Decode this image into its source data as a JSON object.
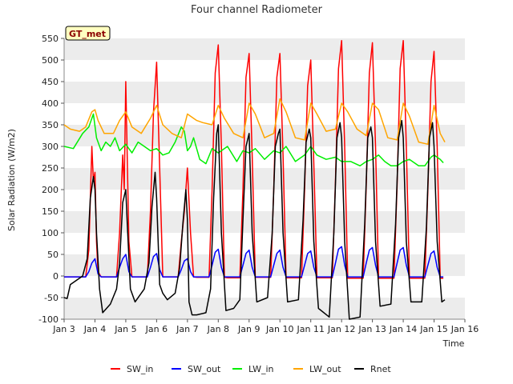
{
  "chart_data": {
    "type": "line",
    "title": "Four channel Radiometer",
    "xlabel": "Time",
    "ylabel": "Solar Radiation (W/m2)",
    "badge": "GT_met",
    "xlim": [
      3,
      16
    ],
    "ylim": [
      -100,
      550
    ],
    "x_tick_values": [
      3,
      4,
      5,
      6,
      7,
      8,
      9,
      10,
      11,
      12,
      13,
      14,
      15,
      16
    ],
    "x_tick_labels": [
      "Jan 3",
      "Jan 4",
      "Jan 5",
      "Jan 6",
      "Jan 7",
      "Jan 8",
      "Jan 9",
      "Jan 10",
      "Jan 11",
      "Jan 12",
      "Jan 13",
      "Jan 14",
      "Jan 15",
      "Jan 16"
    ],
    "y_tick_values": [
      -100,
      -50,
      0,
      50,
      100,
      150,
      200,
      250,
      300,
      350,
      400,
      450,
      500,
      550
    ],
    "y_tick_labels": [
      "-100",
      "-50",
      "0",
      "50",
      "100",
      "150",
      "200",
      "250",
      "300",
      "350",
      "400",
      "450",
      "500",
      "550"
    ],
    "grid": "horizontal bands",
    "legend_position": "bottom",
    "series": [
      {
        "name": "SW_in",
        "color": "#ff0000",
        "x": [
          3.0,
          3.7,
          3.8,
          3.9,
          3.95,
          4.0,
          4.05,
          4.1,
          4.2,
          4.3,
          4.7,
          4.8,
          4.9,
          4.95,
          5.0,
          5.1,
          5.2,
          5.3,
          5.7,
          5.8,
          5.9,
          6.0,
          6.1,
          6.2,
          6.3,
          6.7,
          6.8,
          6.9,
          7.0,
          7.1,
          7.2,
          7.3,
          7.7,
          7.8,
          7.9,
          8.0,
          8.1,
          8.2,
          8.3,
          8.7,
          8.8,
          8.9,
          9.0,
          9.1,
          9.2,
          9.3,
          9.7,
          9.8,
          9.9,
          10.0,
          10.1,
          10.2,
          10.3,
          10.7,
          10.8,
          10.9,
          11.0,
          11.1,
          11.2,
          11.3,
          11.7,
          11.8,
          11.9,
          12.0,
          12.1,
          12.2,
          12.3,
          12.7,
          12.8,
          12.9,
          13.0,
          13.1,
          13.2,
          13.3,
          13.7,
          13.8,
          13.9,
          14.0,
          14.1,
          14.2,
          14.3,
          14.7,
          14.8,
          14.9,
          15.0,
          15.1,
          15.2,
          15.3
        ],
        "y": [
          -2,
          -2,
          60,
          300,
          220,
          240,
          80,
          10,
          -2,
          -2,
          -2,
          100,
          280,
          200,
          450,
          80,
          -2,
          -2,
          -2,
          150,
          380,
          495,
          250,
          -2,
          -2,
          -2,
          80,
          150,
          250,
          100,
          -2,
          -3,
          -3,
          200,
          470,
          535,
          300,
          -3,
          -4,
          -4,
          200,
          460,
          515,
          280,
          -3,
          -3,
          -3,
          200,
          460,
          515,
          280,
          -4,
          -4,
          -4,
          200,
          440,
          500,
          260,
          -4,
          -4,
          -4,
          220,
          480,
          545,
          300,
          -5,
          -5,
          -5,
          210,
          470,
          540,
          300,
          -5,
          -5,
          -5,
          210,
          480,
          545,
          300,
          -5,
          -5,
          -5,
          200,
          450,
          520,
          300,
          -5,
          -5
        ]
      },
      {
        "name": "SW_out",
        "color": "#0000ff",
        "x": [
          3.0,
          3.7,
          3.8,
          3.9,
          4.0,
          4.1,
          4.2,
          4.7,
          4.8,
          4.9,
          5.0,
          5.1,
          5.2,
          5.7,
          5.8,
          5.9,
          6.0,
          6.1,
          6.2,
          6.7,
          6.8,
          6.9,
          7.0,
          7.1,
          7.2,
          7.7,
          7.8,
          7.9,
          8.0,
          8.1,
          8.2,
          8.7,
          8.8,
          8.9,
          9.0,
          9.1,
          9.2,
          9.7,
          9.8,
          9.9,
          10.0,
          10.1,
          10.2,
          10.7,
          10.8,
          10.9,
          11.0,
          11.1,
          11.2,
          11.7,
          11.8,
          11.9,
          12.0,
          12.1,
          12.2,
          12.7,
          12.8,
          12.9,
          13.0,
          13.1,
          13.2,
          13.7,
          13.8,
          13.9,
          14.0,
          14.1,
          14.2,
          14.7,
          14.8,
          14.9,
          15.0,
          15.1,
          15.2,
          15.3
        ],
        "y": [
          -2,
          -2,
          10,
          30,
          40,
          5,
          -2,
          -2,
          20,
          40,
          50,
          10,
          -2,
          -2,
          20,
          45,
          52,
          15,
          -2,
          -2,
          15,
          35,
          40,
          10,
          -2,
          -2,
          25,
          55,
          62,
          20,
          -2,
          -2,
          25,
          52,
          60,
          20,
          -2,
          -2,
          25,
          52,
          60,
          20,
          -2,
          -2,
          25,
          52,
          58,
          20,
          -2,
          -2,
          30,
          62,
          68,
          25,
          -2,
          -2,
          30,
          60,
          66,
          25,
          -2,
          -2,
          30,
          60,
          66,
          25,
          -2,
          -2,
          25,
          52,
          58,
          20,
          -2,
          -2
        ]
      },
      {
        "name": "LW_in",
        "color": "#00ee00",
        "x": [
          3.0,
          3.3,
          3.6,
          3.8,
          3.95,
          4.05,
          4.2,
          4.35,
          4.5,
          4.65,
          4.8,
          5.0,
          5.2,
          5.4,
          5.6,
          5.8,
          6.0,
          6.2,
          6.4,
          6.6,
          6.8,
          6.9,
          7.0,
          7.1,
          7.2,
          7.4,
          7.6,
          7.8,
          8.0,
          8.3,
          8.6,
          8.8,
          9.0,
          9.2,
          9.5,
          9.8,
          10.0,
          10.2,
          10.5,
          10.8,
          11.0,
          11.2,
          11.5,
          11.8,
          12.0,
          12.3,
          12.6,
          12.8,
          13.0,
          13.2,
          13.4,
          13.6,
          13.8,
          14.0,
          14.2,
          14.5,
          14.7,
          14.9,
          15.0,
          15.2,
          15.3
        ],
        "y": [
          300,
          295,
          330,
          345,
          375,
          320,
          290,
          310,
          300,
          320,
          290,
          305,
          285,
          310,
          300,
          290,
          295,
          280,
          285,
          310,
          345,
          335,
          290,
          300,
          320,
          270,
          260,
          295,
          285,
          300,
          265,
          290,
          285,
          295,
          270,
          290,
          285,
          300,
          265,
          280,
          300,
          280,
          270,
          275,
          265,
          265,
          255,
          265,
          270,
          280,
          265,
          255,
          255,
          265,
          270,
          255,
          255,
          275,
          280,
          270,
          262
        ]
      },
      {
        "name": "LW_out",
        "color": "#ffa500",
        "x": [
          3.0,
          3.2,
          3.5,
          3.7,
          3.9,
          4.0,
          4.1,
          4.3,
          4.6,
          4.8,
          5.0,
          5.2,
          5.5,
          5.8,
          6.0,
          6.2,
          6.5,
          6.8,
          7.0,
          7.1,
          7.3,
          7.5,
          7.8,
          8.0,
          8.2,
          8.5,
          8.8,
          9.0,
          9.2,
          9.5,
          9.8,
          10.0,
          10.2,
          10.5,
          10.8,
          11.0,
          11.2,
          11.5,
          11.8,
          12.0,
          12.2,
          12.5,
          12.8,
          13.0,
          13.2,
          13.5,
          13.8,
          14.0,
          14.2,
          14.5,
          14.8,
          15.0,
          15.2,
          15.35
        ],
        "y": [
          350,
          340,
          335,
          345,
          380,
          385,
          360,
          330,
          330,
          360,
          380,
          345,
          330,
          365,
          395,
          350,
          330,
          320,
          375,
          370,
          360,
          355,
          350,
          395,
          365,
          330,
          320,
          400,
          375,
          320,
          330,
          410,
          380,
          320,
          315,
          400,
          375,
          335,
          340,
          400,
          380,
          340,
          325,
          400,
          385,
          320,
          315,
          400,
          370,
          310,
          305,
          395,
          330,
          310
        ]
      },
      {
        "name": "Rnet",
        "color": "#000000",
        "x": [
          3.0,
          3.1,
          3.2,
          3.4,
          3.6,
          3.75,
          3.85,
          3.95,
          4.0,
          4.05,
          4.15,
          4.25,
          4.5,
          4.7,
          4.8,
          4.9,
          5.0,
          5.05,
          5.15,
          5.3,
          5.6,
          5.75,
          5.85,
          5.95,
          6.0,
          6.1,
          6.2,
          6.35,
          6.6,
          6.75,
          6.85,
          6.95,
          7.0,
          7.05,
          7.15,
          7.3,
          7.6,
          7.75,
          7.85,
          7.95,
          8.0,
          8.1,
          8.25,
          8.5,
          8.7,
          8.8,
          8.9,
          9.0,
          9.1,
          9.25,
          9.6,
          9.75,
          9.85,
          9.95,
          10.0,
          10.1,
          10.25,
          10.6,
          10.75,
          10.85,
          10.95,
          11.0,
          11.1,
          11.25,
          11.6,
          11.75,
          11.85,
          11.95,
          12.0,
          12.1,
          12.25,
          12.6,
          12.75,
          12.85,
          12.95,
          13.0,
          13.1,
          13.25,
          13.6,
          13.75,
          13.85,
          13.95,
          14.0,
          14.1,
          14.25,
          14.6,
          14.75,
          14.85,
          14.95,
          15.0,
          15.1,
          15.25,
          15.35
        ],
        "y": [
          -50,
          -52,
          -20,
          -10,
          0,
          40,
          180,
          230,
          200,
          100,
          -30,
          -85,
          -65,
          -30,
          30,
          170,
          200,
          120,
          -30,
          -60,
          -30,
          30,
          160,
          240,
          180,
          -20,
          -40,
          -55,
          -40,
          20,
          120,
          200,
          130,
          -60,
          -90,
          -90,
          -85,
          -30,
          180,
          330,
          350,
          100,
          -80,
          -75,
          -55,
          130,
          300,
          330,
          100,
          -60,
          -50,
          100,
          300,
          330,
          340,
          100,
          -60,
          -55,
          130,
          310,
          340,
          320,
          80,
          -75,
          -95,
          100,
          320,
          355,
          320,
          80,
          -100,
          -95,
          120,
          320,
          345,
          320,
          80,
          -70,
          -65,
          120,
          320,
          360,
          320,
          80,
          -60,
          -60,
          110,
          320,
          355,
          300,
          80,
          -60,
          -55
        ]
      }
    ]
  }
}
